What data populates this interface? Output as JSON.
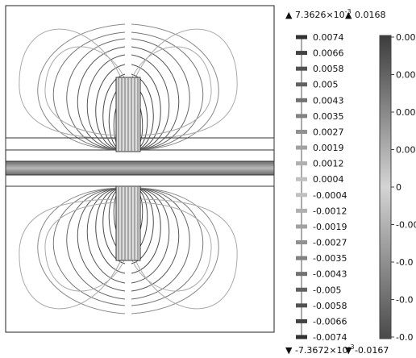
{
  "plot": {
    "contour_color": "#3a3a3a",
    "outer_contour_color": "#9a9a9a",
    "frame_color": "#222222",
    "band_color": "#7a7a7a"
  },
  "contour_legend": {
    "max_prefix": "▲ 7.3626×10",
    "max_exp": "-3",
    "min_prefix": "▼ -7.3672×10",
    "min_exp": "-3",
    "ticks": [
      "0.0074",
      "0.0066",
      "0.0058",
      "0.005",
      "0.0043",
      "0.0035",
      "0.0027",
      "0.0019",
      "0.0012",
      "0.0004",
      "-0.0004",
      "-0.0012",
      "-0.0019",
      "-0.0027",
      "-0.0035",
      "-0.0043",
      "-0.005",
      "-0.0058",
      "-0.0066",
      "-0.0074"
    ]
  },
  "surface_legend": {
    "max_label": "▲ 0.0168",
    "min_label": "▼ -0.0167",
    "ticks": [
      "0.00",
      "0.00",
      "0.00",
      "0.00",
      "0",
      "-0.00",
      "-0.0",
      "-0.0",
      "-0.0"
    ],
    "top_color": "#3c3c3c",
    "mid_color": "#d4d4d4",
    "bottom_color": "#4a4a4a"
  }
}
